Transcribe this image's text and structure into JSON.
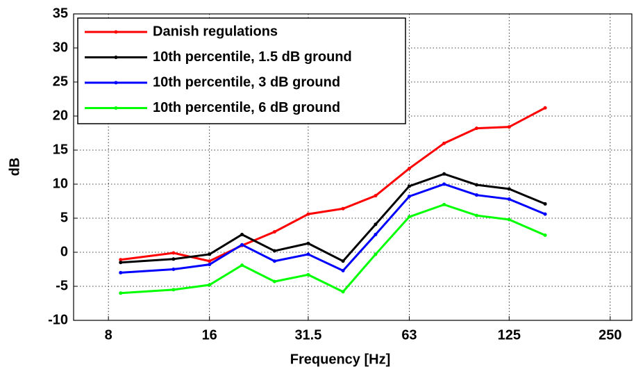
{
  "chart_data": {
    "type": "line",
    "xlabel": "Frequency [Hz]",
    "ylabel": "dB",
    "x": [
      8.7,
      12.5,
      16,
      20,
      25,
      31.5,
      40,
      50,
      63,
      80,
      100,
      125,
      160
    ],
    "series": [
      {
        "name": "Danish regulations",
        "color": "#ff0000",
        "values": [
          -1.1,
          -0.1,
          -1.3,
          1.0,
          3.0,
          5.6,
          6.4,
          8.3,
          12.3,
          16.0,
          18.2,
          18.4,
          21.2
        ]
      },
      {
        "name": "10th percentile, 1.5 dB ground",
        "color": "#000000",
        "values": [
          -1.5,
          -1.0,
          -0.3,
          2.6,
          0.2,
          1.3,
          -1.3,
          4.1,
          9.7,
          11.5,
          9.9,
          9.3,
          7.1
        ]
      },
      {
        "name": "10th percentile, 3 dB ground",
        "color": "#0000ff",
        "values": [
          -3.0,
          -2.5,
          -1.8,
          1.1,
          -1.3,
          -0.3,
          -2.7,
          2.6,
          8.2,
          10.0,
          8.4,
          7.8,
          5.6
        ]
      },
      {
        "name": "10th percentile, 6 dB ground",
        "color": "#00ff00",
        "values": [
          -6.0,
          -5.5,
          -4.8,
          -1.9,
          -4.3,
          -3.3,
          -5.8,
          -0.3,
          5.2,
          7.0,
          5.4,
          4.8,
          2.5
        ]
      }
    ],
    "xscale": "log",
    "xlim": [
      6.3,
      290
    ],
    "xticks": [
      8,
      16,
      31.5,
      63,
      125,
      250
    ],
    "ylim": [
      -10,
      35
    ],
    "yticks": [
      -10,
      -5,
      0,
      5,
      10,
      15,
      20,
      25,
      30,
      35
    ],
    "grid": true,
    "legend": "upper left"
  }
}
